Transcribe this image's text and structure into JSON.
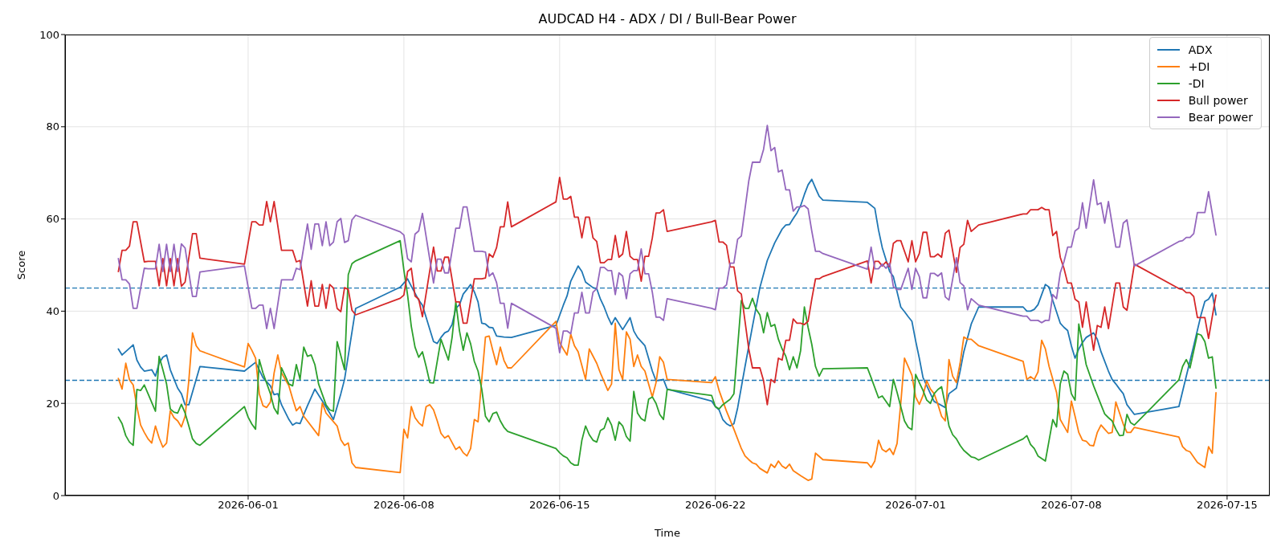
{
  "chart_data": {
    "type": "line",
    "title": "AUDCAD H4 - ADX / DI / Bull-Bear Power",
    "xlabel": "Time",
    "ylabel": "Score",
    "xlim": [
      "2026-05-23T18:30",
      "2026-07-16T22:00"
    ],
    "xticks": [
      "2026-06-01",
      "2026-06-08",
      "2026-06-15",
      "2026-06-22",
      "2026-07-01",
      "2026-07-08",
      "2026-07-15"
    ],
    "ylim": [
      0,
      100
    ],
    "yticks": [
      0,
      20,
      40,
      60,
      80,
      100
    ],
    "grid": true,
    "legend": "top right",
    "ref_lines": [
      {
        "axis": "y",
        "value": 45,
        "color": "#1f77b4",
        "line_style": "dashed"
      },
      {
        "axis": "y",
        "value": 25,
        "color": "#1f77b4",
        "line_style": "dashed"
      }
    ],
    "x": [
      "2026-05-26T04:00",
      "2026-05-26T08:00",
      "2026-05-26T12:00",
      "2026-05-26T16:00",
      "2026-05-26T20:00",
      "2026-05-27T00:00",
      "2026-05-27T08:00",
      "2026-05-27T12:00",
      "2026-05-27T20:00",
      "2026-05-28T00:00",
      "2026-05-28T04:00",
      "2026-05-28T08:00",
      "2026-05-28T12:00",
      "2026-05-28T16:00",
      "2026-05-28T20:00",
      "2026-05-29T00:00",
      "2026-05-29T04:00",
      "2026-05-29T12:00",
      "2026-05-29T16:00",
      "2026-05-29T20:00",
      "2026-05-31T20:00",
      "2026-06-01T04:00",
      "2026-06-01T08:00",
      "2026-06-01T12:00",
      "2026-06-01T16:00",
      "2026-06-01T20:00",
      "2026-06-02T00:00",
      "2026-06-02T04:00",
      "2026-06-02T12:00",
      "2026-06-03T00:00",
      "2026-06-03T04:00",
      "2026-06-03T08:00",
      "2026-06-03T16:00",
      "2026-06-03T20:00",
      "2026-06-04T00:00",
      "2026-06-04T04:00",
      "2026-06-04T08:00",
      "2026-06-04T12:00",
      "2026-06-04T16:00",
      "2026-06-04T20:00",
      "2026-06-05T00:00",
      "2026-06-05T04:00",
      "2026-06-05T08:00",
      "2026-06-05T12:00",
      "2026-06-05T16:00",
      "2026-06-05T20:00",
      "2026-06-07T20:00",
      "2026-06-08T00:00",
      "2026-06-08T04:00",
      "2026-06-08T08:00",
      "2026-06-08T12:00",
      "2026-06-08T16:00",
      "2026-06-08T20:00",
      "2026-06-09T08:00",
      "2026-06-09T12:00",
      "2026-06-09T16:00",
      "2026-06-09T20:00",
      "2026-06-10T00:00",
      "2026-06-10T08:00",
      "2026-06-10T12:00",
      "2026-06-10T16:00",
      "2026-06-10T20:00",
      "2026-06-11T04:00",
      "2026-06-11T12:00",
      "2026-06-11T16:00",
      "2026-06-11T20:00",
      "2026-06-12T00:00",
      "2026-06-12T04:00",
      "2026-06-12T08:00",
      "2026-06-12T12:00",
      "2026-06-12T16:00",
      "2026-06-12T20:00",
      "2026-06-14T20:00",
      "2026-06-15T00:00",
      "2026-06-15T04:00",
      "2026-06-15T08:00",
      "2026-06-15T12:00",
      "2026-06-15T16:00",
      "2026-06-15T20:00",
      "2026-06-16T00:00",
      "2026-06-16T04:00",
      "2026-06-16T08:00",
      "2026-06-16T12:00",
      "2026-06-16T16:00",
      "2026-06-16T20:00",
      "2026-06-17T00:00",
      "2026-06-17T04:00",
      "2026-06-17T08:00",
      "2026-06-17T12:00",
      "2026-06-17T16:00",
      "2026-06-17T20:00",
      "2026-06-18T00:00",
      "2026-06-18T04:00",
      "2026-06-18T08:00",
      "2026-06-18T12:00",
      "2026-06-18T16:00",
      "2026-06-18T20:00",
      "2026-06-19T00:00",
      "2026-06-19T04:00",
      "2026-06-19T08:00",
      "2026-06-19T12:00",
      "2026-06-19T16:00",
      "2026-06-19T20:00",
      "2026-06-21T20:00",
      "2026-06-22T00:00",
      "2026-06-22T04:00",
      "2026-06-22T08:00",
      "2026-06-22T12:00",
      "2026-06-22T16:00",
      "2026-06-22T20:00",
      "2026-06-23T00:00",
      "2026-06-23T04:00",
      "2026-06-23T08:00",
      "2026-06-23T12:00",
      "2026-06-23T16:00",
      "2026-06-23T20:00",
      "2026-06-24T00:00",
      "2026-06-24T04:00",
      "2026-06-24T08:00",
      "2026-06-24T12:00",
      "2026-06-24T16:00",
      "2026-06-24T20:00",
      "2026-06-25T00:00",
      "2026-06-25T04:00",
      "2026-06-25T08:00",
      "2026-06-25T12:00",
      "2026-06-25T16:00",
      "2026-06-25T20:00",
      "2026-06-26T00:00",
      "2026-06-26T04:00",
      "2026-06-26T08:00",
      "2026-06-26T12:00",
      "2026-06-26T16:00",
      "2026-06-26T20:00",
      "2026-06-28T20:00",
      "2026-06-29T00:00",
      "2026-06-29T04:00",
      "2026-06-29T08:00",
      "2026-06-29T12:00",
      "2026-06-29T16:00",
      "2026-06-29T20:00",
      "2026-06-30T00:00",
      "2026-06-30T04:00",
      "2026-06-30T08:00",
      "2026-06-30T16:00",
      "2026-06-30T20:00",
      "2026-07-01T00:00",
      "2026-07-01T04:00",
      "2026-07-01T08:00",
      "2026-07-01T12:00",
      "2026-07-01T16:00",
      "2026-07-01T20:00",
      "2026-07-02T00:00",
      "2026-07-02T04:00",
      "2026-07-02T08:00",
      "2026-07-02T12:00",
      "2026-07-02T20:00",
      "2026-07-03T00:00",
      "2026-07-03T04:00",
      "2026-07-03T08:00",
      "2026-07-03T12:00",
      "2026-07-03T20:00",
      "2026-07-05T20:00",
      "2026-07-06T00:00",
      "2026-07-06T04:00",
      "2026-07-06T12:00",
      "2026-07-06T16:00",
      "2026-07-06T20:00",
      "2026-07-07T00:00",
      "2026-07-07T04:00",
      "2026-07-07T08:00",
      "2026-07-07T12:00",
      "2026-07-07T16:00",
      "2026-07-07T20:00",
      "2026-07-08T00:00",
      "2026-07-08T04:00",
      "2026-07-08T08:00",
      "2026-07-08T12:00",
      "2026-07-08T16:00",
      "2026-07-09T00:00",
      "2026-07-09T04:00",
      "2026-07-09T08:00",
      "2026-07-09T12:00",
      "2026-07-09T16:00",
      "2026-07-10T00:00",
      "2026-07-10T04:00",
      "2026-07-10T08:00",
      "2026-07-10T12:00",
      "2026-07-10T20:00",
      "2026-07-12T20:00",
      "2026-07-13T00:00",
      "2026-07-13T04:00",
      "2026-07-13T08:00",
      "2026-07-13T12:00",
      "2026-07-13T16:00",
      "2026-07-14T00:00",
      "2026-07-14T04:00",
      "2026-07-14T12:00"
    ],
    "series": [
      {
        "name": "ADX",
        "color": "#1f77b4",
        "x": [
          "2026-05-26T04:00",
          "2026-05-26T08:00",
          "2026-05-26T20:00",
          "2026-05-27T00:00",
          "2026-05-27T04:00",
          "2026-05-27T08:00",
          "2026-05-27T16:00",
          "2026-05-27T20:00",
          "2026-05-28T00:00",
          "2026-05-28T04:00",
          "2026-05-28T08:00",
          "2026-05-28T12:00",
          "2026-05-28T20:00",
          "2026-05-29T00:00",
          "2026-05-29T04:00",
          "2026-05-29T08:00",
          "2026-05-29T20:00",
          "2026-05-31T20:00",
          "2026-06-01T08:00",
          "2026-06-01T16:00",
          "2026-06-02T00:00",
          "2026-06-02T04:00",
          "2026-06-02T08:00",
          "2026-06-02T12:00",
          "2026-06-02T20:00",
          "2026-06-03T00:00",
          "2026-06-03T04:00",
          "2026-06-03T08:00",
          "2026-06-03T16:00",
          "2026-06-04T00:00",
          "2026-06-04T08:00",
          "2026-06-04T16:00",
          "2026-06-04T20:00",
          "2026-06-05T04:00",
          "2026-06-05T08:00",
          "2026-06-05T20:00",
          "2026-06-07T20:00",
          "2026-06-08T04:00",
          "2026-06-08T08:00",
          "2026-06-08T16:00",
          "2026-06-08T20:00",
          "2026-06-09T04:00",
          "2026-06-09T08:00",
          "2026-06-09T12:00",
          "2026-06-09T16:00",
          "2026-06-09T20:00",
          "2026-06-10T00:00",
          "2026-06-10T04:00",
          "2026-06-10T08:00",
          "2026-06-10T12:00",
          "2026-06-10T16:00",
          "2026-06-10T20:00",
          "2026-06-11T00:00",
          "2026-06-11T04:00",
          "2026-06-11T08:00",
          "2026-06-11T12:00",
          "2026-06-11T16:00",
          "2026-06-11T20:00",
          "2026-06-12T00:00",
          "2026-06-12T04:00",
          "2026-06-12T12:00",
          "2026-06-12T20:00",
          "2026-06-14T20:00",
          "2026-06-15T04:00",
          "2026-06-15T08:00",
          "2026-06-15T12:00",
          "2026-06-15T20:00",
          "2026-06-16T00:00",
          "2026-06-16T04:00",
          "2026-06-16T12:00",
          "2026-06-16T16:00",
          "2026-06-16T20:00",
          "2026-06-17T00:00",
          "2026-06-17T04:00",
          "2026-06-17T08:00",
          "2026-06-17T12:00",
          "2026-06-17T20:00",
          "2026-06-18T04:00",
          "2026-06-18T08:00",
          "2026-06-18T12:00",
          "2026-06-18T20:00",
          "2026-06-19T04:00",
          "2026-06-19T08:00",
          "2026-06-19T16:00",
          "2026-06-19T20:00",
          "2026-06-21T20:00",
          "2026-06-22T00:00",
          "2026-06-22T04:00",
          "2026-06-22T08:00",
          "2026-06-22T12:00",
          "2026-06-22T16:00",
          "2026-06-22T20:00",
          "2026-06-23T00:00",
          "2026-06-23T08:00",
          "2026-06-23T16:00",
          "2026-06-24T00:00",
          "2026-06-24T08:00",
          "2026-06-24T16:00",
          "2026-06-25T00:00",
          "2026-06-25T04:00",
          "2026-06-25T08:00",
          "2026-06-25T12:00",
          "2026-06-25T16:00",
          "2026-06-25T20:00",
          "2026-06-26T00:00",
          "2026-06-26T04:00",
          "2026-06-26T08:00",
          "2026-06-26T12:00",
          "2026-06-26T16:00",
          "2026-06-26T20:00",
          "2026-06-28T20:00",
          "2026-06-29T04:00",
          "2026-06-29T08:00",
          "2026-06-29T12:00",
          "2026-06-29T20:00",
          "2026-06-30T00:00",
          "2026-06-30T08:00",
          "2026-06-30T12:00",
          "2026-06-30T16:00",
          "2026-06-30T20:00",
          "2026-07-01T00:00",
          "2026-07-01T04:00",
          "2026-07-01T08:00",
          "2026-07-01T16:00",
          "2026-07-01T20:00",
          "2026-07-02T00:00",
          "2026-07-02T08:00",
          "2026-07-02T12:00",
          "2026-07-02T20:00",
          "2026-07-03T00:00",
          "2026-07-03T04:00",
          "2026-07-03T12:00",
          "2026-07-03T20:00",
          "2026-07-05T20:00",
          "2026-07-06T00:00",
          "2026-07-06T04:00",
          "2026-07-06T08:00",
          "2026-07-06T12:00",
          "2026-07-06T20:00",
          "2026-07-07T00:00",
          "2026-07-07T04:00",
          "2026-07-07T12:00",
          "2026-07-07T16:00",
          "2026-07-07T20:00",
          "2026-07-08T00:00",
          "2026-07-08T04:00",
          "2026-07-08T08:00",
          "2026-07-08T12:00",
          "2026-07-08T16:00",
          "2026-07-09T00:00",
          "2026-07-09T04:00",
          "2026-07-09T08:00",
          "2026-07-09T16:00",
          "2026-07-09T20:00",
          "2026-07-10T00:00",
          "2026-07-10T04:00",
          "2026-07-10T08:00",
          "2026-07-10T12:00",
          "2026-07-10T20:00",
          "2026-07-12T20:00",
          "2026-07-13T04:00",
          "2026-07-13T12:00",
          "2026-07-13T20:00",
          "2026-07-14T00:00",
          "2026-07-14T04:00",
          "2026-07-14T08:00",
          "2026-07-14T12:00"
        ],
        "values": [
          31.8,
          30.5,
          32.7,
          29.4,
          27.9,
          27,
          27.3,
          25.9,
          28.7,
          30,
          30.5,
          27.3,
          23.3,
          22.1,
          19.7,
          19.7,
          28,
          27,
          28.9,
          25.6,
          23.8,
          21.9,
          22.1,
          19.7,
          16.5,
          15.3,
          15.8,
          15.6,
          19.5,
          23.1,
          20.5,
          17.9,
          16.5,
          22.1,
          25.2,
          40.6,
          45.2,
          47,
          45.4,
          42.4,
          41.3,
          36,
          33.4,
          33,
          34.3,
          35.3,
          35.7,
          37.1,
          40.6,
          41.4,
          43.7,
          44.7,
          45.8,
          44.2,
          42,
          37.4,
          37.2,
          36.5,
          36.4,
          34.6,
          34.4,
          34.3,
          36.9,
          41.3,
          43.3,
          46.5,
          49.8,
          48.6,
          46.3,
          45.1,
          44.9,
          42.6,
          40.9,
          38.8,
          37.1,
          38.6,
          36,
          38.6,
          35.7,
          34.3,
          32.5,
          27,
          24.9,
          25.2,
          23.1,
          20.5,
          19.3,
          18.6,
          16.5,
          15.6,
          15.1,
          15.6,
          19,
          28,
          36.7,
          45.1,
          51,
          54.8,
          57.8,
          58.7,
          58.8,
          60.1,
          61.3,
          62.9,
          65.3,
          67.4,
          68.6,
          66.7,
          64.9,
          64.1,
          63.6,
          62.3,
          57.6,
          53.8,
          48.6,
          47.5,
          40.9,
          39.9,
          38.8,
          37.8,
          33.6,
          29.8,
          25.6,
          22.1,
          20.4,
          20,
          19.1,
          22.1,
          23.3,
          27,
          31.2,
          37.2,
          40.9,
          40.9,
          40,
          40,
          40.4,
          41.4,
          45.8,
          45.2,
          42.3,
          37.4,
          36.5,
          35.8,
          32.5,
          29.8,
          31.8,
          33.2,
          34.3,
          35.3,
          33.9,
          31.2,
          27,
          25.2,
          24.2,
          23.1,
          22.1,
          19.7,
          17.6,
          19.3,
          25.9,
          32.5,
          39.3,
          42.1,
          42.6,
          43.9,
          39.2
        ]
      },
      {
        "name": "+DI",
        "color": "#ff7f0e",
        "x": [
          "2026-05-26T04:00",
          "2026-05-26T08:00",
          "2026-05-26T12:00",
          "2026-05-26T16:00",
          "2026-05-26T20:00",
          "2026-05-27T00:00",
          "2026-05-27T04:00",
          "2026-05-27T08:00",
          "2026-05-27T12:00",
          "2026-05-27T16:00",
          "2026-05-27T20:00",
          "2026-05-28T00:00",
          "2026-05-28T04:00",
          "2026-05-28T08:00",
          "2026-05-28T12:00",
          "2026-05-28T16:00",
          "2026-05-28T20:00",
          "2026-05-29T00:00",
          "2026-05-29T04:00",
          "2026-05-29T08:00",
          "2026-05-29T12:00",
          "2026-05-29T16:00",
          "2026-05-29T20:00",
          "2026-05-31T20:00",
          "2026-06-01T00:00",
          "2026-06-01T04:00",
          "2026-06-01T08:00",
          "2026-06-01T12:00",
          "2026-06-01T16:00",
          "2026-06-01T20:00",
          "2026-06-02T00:00",
          "2026-06-02T04:00",
          "2026-06-02T08:00",
          "2026-06-02T12:00",
          "2026-06-02T16:00",
          "2026-06-02T20:00",
          "2026-06-03T00:00",
          "2026-06-03T04:00",
          "2026-06-03T08:00",
          "2026-06-03T12:00",
          "2026-06-04T04:00",
          "2026-06-04T08:00",
          "2026-06-04T12:00",
          "2026-06-05T00:00",
          "2026-06-05T04:00",
          "2026-06-05T08:00",
          "2026-06-05T12:00",
          "2026-06-05T16:00",
          "2026-06-05T20:00",
          "2026-06-07T20:00",
          "2026-06-08T00:00",
          "2026-06-08T04:00",
          "2026-06-08T08:00",
          "2026-06-08T12:00",
          "2026-06-08T16:00",
          "2026-06-08T20:00",
          "2026-06-09T00:00",
          "2026-06-09T04:00",
          "2026-06-09T08:00",
          "2026-06-09T12:00",
          "2026-06-09T16:00",
          "2026-06-09T20:00",
          "2026-06-10T00:00",
          "2026-06-10T08:00",
          "2026-06-10T12:00",
          "2026-06-10T16:00",
          "2026-06-10T20:00",
          "2026-06-11T00:00",
          "2026-06-11T04:00",
          "2026-06-11T08:00",
          "2026-06-11T16:00",
          "2026-06-11T20:00",
          "2026-06-12T00:00",
          "2026-06-12T04:00",
          "2026-06-12T08:00",
          "2026-06-12T12:00",
          "2026-06-12T16:00",
          "2026-06-12T20:00",
          "2026-06-14T20:00",
          "2026-06-15T00:00",
          "2026-06-15T04:00",
          "2026-06-15T08:00",
          "2026-06-15T12:00",
          "2026-06-15T16:00",
          "2026-06-15T20:00",
          "2026-06-16T04:00",
          "2026-06-16T08:00",
          "2026-06-16T16:00",
          "2026-06-16T20:00",
          "2026-06-17T04:00",
          "2026-06-17T08:00",
          "2026-06-17T12:00",
          "2026-06-17T16:00",
          "2026-06-17T20:00",
          "2026-06-18T00:00",
          "2026-06-18T04:00",
          "2026-06-18T08:00",
          "2026-06-18T12:00",
          "2026-06-18T16:00",
          "2026-06-18T20:00",
          "2026-06-19T04:00",
          "2026-06-19T08:00",
          "2026-06-19T12:00",
          "2026-06-19T16:00",
          "2026-06-19T20:00",
          "2026-06-21T20:00",
          "2026-06-22T00:00",
          "2026-06-22T04:00",
          "2026-06-22T12:00",
          "2026-06-22T20:00",
          "2026-06-23T04:00",
          "2026-06-23T08:00",
          "2026-06-23T12:00",
          "2026-06-23T16:00",
          "2026-06-23T20:00",
          "2026-06-24T00:00",
          "2026-06-24T08:00",
          "2026-06-24T12:00",
          "2026-06-24T16:00",
          "2026-06-24T20:00",
          "2026-06-25T00:00",
          "2026-06-25T04:00",
          "2026-06-25T08:00",
          "2026-06-25T12:00",
          "2026-06-25T20:00",
          "2026-06-26T04:00",
          "2026-06-26T08:00",
          "2026-06-26T12:00",
          "2026-06-26T20:00",
          "2026-06-28T20:00",
          "2026-06-29T00:00",
          "2026-06-29T04:00",
          "2026-06-29T08:00",
          "2026-06-29T12:00",
          "2026-06-29T16:00",
          "2026-06-29T20:00",
          "2026-06-30T00:00",
          "2026-06-30T04:00",
          "2026-06-30T08:00",
          "2026-06-30T12:00",
          "2026-06-30T16:00",
          "2026-06-30T20:00",
          "2026-07-01T00:00",
          "2026-07-01T04:00",
          "2026-07-01T08:00",
          "2026-07-01T12:00",
          "2026-07-01T16:00",
          "2026-07-01T20:00",
          "2026-07-02T00:00",
          "2026-07-02T04:00",
          "2026-07-02T08:00",
          "2026-07-02T12:00",
          "2026-07-02T16:00",
          "2026-07-02T20:00",
          "2026-07-03T00:00",
          "2026-07-03T04:00",
          "2026-07-03T08:00",
          "2026-07-03T12:00",
          "2026-07-03T20:00",
          "2026-07-05T20:00",
          "2026-07-06T00:00",
          "2026-07-06T04:00",
          "2026-07-06T08:00",
          "2026-07-06T12:00",
          "2026-07-06T16:00",
          "2026-07-06T20:00",
          "2026-07-07T00:00",
          "2026-07-07T04:00",
          "2026-07-07T08:00",
          "2026-07-07T12:00",
          "2026-07-07T16:00",
          "2026-07-07T20:00",
          "2026-07-08T00:00",
          "2026-07-08T04:00",
          "2026-07-08T08:00",
          "2026-07-08T12:00",
          "2026-07-08T16:00",
          "2026-07-08T20:00",
          "2026-07-09T00:00",
          "2026-07-09T04:00",
          "2026-07-09T08:00",
          "2026-07-09T12:00",
          "2026-07-09T16:00",
          "2026-07-09T20:00",
          "2026-07-10T00:00",
          "2026-07-10T04:00",
          "2026-07-10T08:00",
          "2026-07-10T12:00",
          "2026-07-10T16:00",
          "2026-07-10T20:00",
          "2026-07-12T20:00",
          "2026-07-13T00:00",
          "2026-07-13T04:00",
          "2026-07-13T08:00",
          "2026-07-13T16:00",
          "2026-07-14T00:00",
          "2026-07-14T04:00",
          "2026-07-14T08:00",
          "2026-07-14T12:00"
        ],
        "values": [
          25.4,
          23.1,
          28.7,
          25.1,
          24,
          19.3,
          15.3,
          13.7,
          12.3,
          11.4,
          15.1,
          12.5,
          10.5,
          11.4,
          18.4,
          16.9,
          16.2,
          14.9,
          17.2,
          24.9,
          35.3,
          32.5,
          31.4,
          27.9,
          33,
          31.5,
          29.8,
          22.1,
          19.5,
          19.1,
          20.3,
          26.6,
          30.5,
          26.6,
          25.2,
          23.8,
          21,
          18.4,
          19.3,
          17.2,
          13,
          20.1,
          17.9,
          15.1,
          12.1,
          10.9,
          11.4,
          7.1,
          6.1,
          5,
          14.4,
          12.5,
          19.3,
          16.9,
          15.8,
          15.1,
          19.3,
          19.7,
          18.6,
          16.2,
          13.5,
          12.5,
          13,
          10,
          10.6,
          9.3,
          8.6,
          10.2,
          16.5,
          16,
          34.4,
          34.6,
          31.4,
          28.4,
          32.2,
          29.3,
          27.7,
          27.7,
          37.8,
          33.2,
          31.8,
          30.5,
          35,
          32.5,
          31.2,
          25.2,
          31.8,
          28.7,
          26.6,
          22.8,
          24.2,
          37.4,
          27.3,
          25.2,
          35.5,
          33.9,
          28,
          30.5,
          28,
          27,
          21.4,
          24.5,
          30.1,
          28.9,
          25.2,
          24.5,
          25.8,
          22.8,
          18.3,
          14.4,
          10.2,
          8.6,
          7.8,
          7.1,
          6.8,
          5.9,
          4.9,
          6.8,
          6.1,
          7.5,
          6.4,
          5.9,
          6.8,
          5.4,
          4.3,
          3.3,
          3.6,
          9.2,
          7.8,
          7.1,
          6.1,
          7.5,
          12,
          10,
          9.5,
          10.2,
          8.9,
          11.3,
          20,
          29.8,
          28,
          26.1,
          21.4,
          19.8,
          21.7,
          24.9,
          23.1,
          22.1,
          19.8,
          17.2,
          16.2,
          29.5,
          25.9,
          24.5,
          28.7,
          34.4,
          33.9,
          33.9,
          32.5,
          29.1,
          25.2,
          25.8,
          25.2,
          26.8,
          33.7,
          31.8,
          28,
          25.2,
          22.4,
          16.5,
          15.1,
          13.7,
          20.5,
          17.2,
          13.7,
          12,
          11.8,
          10.9,
          10.8,
          13.7,
          15.3,
          14.4,
          13.5,
          13.7,
          20.3,
          17.9,
          15.5,
          13.7,
          13.7,
          14.8,
          12.7,
          10.6,
          9.8,
          9.5,
          7.2,
          6.1,
          10.6,
          9.2,
          22.3
        ]
      },
      {
        "name": "-DI",
        "color": "#2ca02c",
        "x": [
          "2026-05-26T04:00",
          "2026-05-26T08:00",
          "2026-05-26T12:00",
          "2026-05-26T16:00",
          "2026-05-26T20:00",
          "2026-05-27T00:00",
          "2026-05-27T04:00",
          "2026-05-27T08:00",
          "2026-05-27T12:00",
          "2026-05-27T20:00",
          "2026-05-28T00:00",
          "2026-05-28T04:00",
          "2026-05-28T08:00",
          "2026-05-28T12:00",
          "2026-05-28T16:00",
          "2026-05-28T20:00",
          "2026-05-29T00:00",
          "2026-05-29T04:00",
          "2026-05-29T08:00",
          "2026-05-29T12:00",
          "2026-05-29T16:00",
          "2026-05-29T20:00",
          "2026-05-31T20:00",
          "2026-06-01T00:00",
          "2026-06-01T04:00",
          "2026-06-01T08:00",
          "2026-06-01T12:00",
          "2026-06-01T16:00",
          "2026-06-02T00:00",
          "2026-06-02T04:00",
          "2026-06-02T08:00",
          "2026-06-02T12:00",
          "2026-06-02T20:00",
          "2026-06-03T00:00",
          "2026-06-03T04:00",
          "2026-06-03T08:00",
          "2026-06-03T12:00",
          "2026-06-03T16:00",
          "2026-06-03T20:00",
          "2026-06-04T00:00",
          "2026-06-04T04:00",
          "2026-06-04T12:00",
          "2026-06-04T16:00",
          "2026-06-04T20:00",
          "2026-06-05T00:00",
          "2026-06-05T08:00",
          "2026-06-05T12:00",
          "2026-06-05T16:00",
          "2026-06-05T20:00",
          "2026-06-07T20:00",
          "2026-06-08T00:00",
          "2026-06-08T04:00",
          "2026-06-08T08:00",
          "2026-06-08T12:00",
          "2026-06-08T16:00",
          "2026-06-08T20:00",
          "2026-06-09T00:00",
          "2026-06-09T04:00",
          "2026-06-09T08:00",
          "2026-06-09T16:00",
          "2026-06-10T00:00",
          "2026-06-10T04:00",
          "2026-06-10T08:00",
          "2026-06-10T12:00",
          "2026-06-10T16:00",
          "2026-06-10T20:00",
          "2026-06-11T00:00",
          "2026-06-11T04:00",
          "2026-06-11T08:00",
          "2026-06-11T12:00",
          "2026-06-11T16:00",
          "2026-06-11T20:00",
          "2026-06-12T00:00",
          "2026-06-12T04:00",
          "2026-06-12T08:00",
          "2026-06-12T12:00",
          "2026-06-12T16:00",
          "2026-06-14T20:00",
          "2026-06-15T00:00",
          "2026-06-15T04:00",
          "2026-06-15T08:00",
          "2026-06-15T12:00",
          "2026-06-15T16:00",
          "2026-06-15T20:00",
          "2026-06-16T00:00",
          "2026-06-16T04:00",
          "2026-06-16T08:00",
          "2026-06-16T12:00",
          "2026-06-16T16:00",
          "2026-06-16T20:00",
          "2026-06-17T00:00",
          "2026-06-17T04:00",
          "2026-06-17T08:00",
          "2026-06-17T12:00",
          "2026-06-17T16:00",
          "2026-06-17T20:00",
          "2026-06-18T00:00",
          "2026-06-18T04:00",
          "2026-06-18T08:00",
          "2026-06-18T12:00",
          "2026-06-18T16:00",
          "2026-06-18T20:00",
          "2026-06-19T00:00",
          "2026-06-19T04:00",
          "2026-06-19T08:00",
          "2026-06-19T12:00",
          "2026-06-19T16:00",
          "2026-06-19T20:00",
          "2026-06-21T20:00",
          "2026-06-22T00:00",
          "2026-06-22T04:00",
          "2026-06-22T08:00",
          "2026-06-22T12:00",
          "2026-06-22T16:00",
          "2026-06-22T20:00",
          "2026-06-23T04:00",
          "2026-06-23T08:00",
          "2026-06-23T12:00",
          "2026-06-23T16:00",
          "2026-06-23T20:00",
          "2026-06-24T00:00",
          "2026-06-24T04:00",
          "2026-06-24T08:00",
          "2026-06-24T12:00",
          "2026-06-24T16:00",
          "2026-06-24T20:00",
          "2026-06-25T00:00",
          "2026-06-25T04:00",
          "2026-06-25T08:00",
          "2026-06-25T12:00",
          "2026-06-25T16:00",
          "2026-06-25T20:00",
          "2026-06-26T00:00",
          "2026-06-26T04:00",
          "2026-06-26T08:00",
          "2026-06-26T12:00",
          "2026-06-26T16:00",
          "2026-06-26T20:00",
          "2026-06-28T20:00",
          "2026-06-29T00:00",
          "2026-06-29T08:00",
          "2026-06-29T12:00",
          "2026-06-29T20:00",
          "2026-06-30T00:00",
          "2026-06-30T04:00",
          "2026-06-30T08:00",
          "2026-06-30T12:00",
          "2026-06-30T16:00",
          "2026-06-30T20:00",
          "2026-07-01T00:00",
          "2026-07-01T04:00",
          "2026-07-01T08:00",
          "2026-07-01T12:00",
          "2026-07-01T16:00",
          "2026-07-01T20:00",
          "2026-07-02T00:00",
          "2026-07-02T04:00",
          "2026-07-02T08:00",
          "2026-07-02T12:00",
          "2026-07-02T16:00",
          "2026-07-02T20:00",
          "2026-07-03T00:00",
          "2026-07-03T04:00",
          "2026-07-03T08:00",
          "2026-07-03T12:00",
          "2026-07-03T16:00",
          "2026-07-03T20:00",
          "2026-07-05T20:00",
          "2026-07-06T00:00",
          "2026-07-06T04:00",
          "2026-07-06T08:00",
          "2026-07-06T12:00",
          "2026-07-06T20:00",
          "2026-07-07T04:00",
          "2026-07-07T08:00",
          "2026-07-07T12:00",
          "2026-07-07T16:00",
          "2026-07-07T20:00",
          "2026-07-08T00:00",
          "2026-07-08T04:00",
          "2026-07-08T08:00",
          "2026-07-08T12:00",
          "2026-07-08T16:00",
          "2026-07-09T00:00",
          "2026-07-09T08:00",
          "2026-07-09T12:00",
          "2026-07-09T16:00",
          "2026-07-09T20:00",
          "2026-07-10T00:00",
          "2026-07-10T04:00",
          "2026-07-10T08:00",
          "2026-07-10T12:00",
          "2026-07-10T16:00",
          "2026-07-10T20:00",
          "2026-07-12T20:00",
          "2026-07-13T00:00",
          "2026-07-13T04:00",
          "2026-07-13T08:00",
          "2026-07-13T16:00",
          "2026-07-13T20:00",
          "2026-07-14T00:00",
          "2026-07-14T04:00",
          "2026-07-14T08:00",
          "2026-07-14T12:00"
        ],
        "values": [
          17,
          15.6,
          13,
          11.6,
          10.9,
          23,
          22.8,
          24,
          22.1,
          18.3,
          30.2,
          27.3,
          24.2,
          18.8,
          18.1,
          17.9,
          19.8,
          17.9,
          15.1,
          12.3,
          11.3,
          10.9,
          19.3,
          17,
          15.5,
          14.4,
          29.5,
          26.6,
          22.1,
          19,
          17.7,
          27.7,
          24.2,
          23.8,
          28.4,
          25.2,
          32.2,
          30.2,
          30.5,
          28.4,
          24.2,
          19.7,
          18.6,
          18.3,
          33.4,
          27.3,
          47.9,
          50.3,
          50.9,
          55.3,
          48.9,
          43.5,
          36.7,
          32.2,
          30,
          31.2,
          28,
          24.5,
          24.4,
          33.9,
          29.4,
          34.3,
          42,
          35.7,
          31.5,
          35.3,
          32.9,
          29.1,
          27,
          23.1,
          17.2,
          16,
          17.8,
          18.1,
          16.2,
          14.8,
          13.9,
          10.2,
          9.3,
          8.6,
          8.2,
          7.1,
          6.6,
          6.6,
          12,
          15.1,
          13.2,
          12,
          11.6,
          14.1,
          14.6,
          16.9,
          15.3,
          12,
          16,
          15.1,
          12.8,
          11.8,
          22.6,
          17.9,
          16.7,
          16.2,
          20.9,
          21.4,
          20,
          17.6,
          16.5,
          23,
          21.7,
          19.3,
          18.8,
          19.7,
          20.3,
          20.9,
          22.1,
          42.3,
          40.6,
          40.6,
          42.8,
          40.4,
          39.2,
          35.3,
          39.7,
          36.7,
          37.1,
          33.9,
          31.8,
          30.2,
          27.3,
          30.1,
          27.7,
          31.5,
          40.9,
          36.5,
          32.8,
          28,
          25.9,
          27.5,
          27.7,
          25.6,
          21.2,
          21.6,
          19.3,
          25.2,
          22.4,
          19.3,
          16.2,
          14.8,
          14.3,
          26.3,
          24.5,
          22.8,
          20.7,
          20,
          22.1,
          23,
          23.6,
          19.7,
          15.1,
          13.2,
          12.3,
          10.9,
          9.8,
          9.1,
          8.4,
          8.2,
          7.7,
          12.3,
          13,
          11.1,
          10.2,
          8.6,
          7.5,
          16.5,
          14.9,
          24.2,
          27,
          26.3,
          22.1,
          20.7,
          37.2,
          32.9,
          28.4,
          23.8,
          19.7,
          17.7,
          16.9,
          16.2,
          14.4,
          13,
          13.1,
          17.6,
          15.8,
          15.3,
          25.1,
          28,
          29.5,
          27.7,
          35.1,
          34.8,
          33.4,
          29.8,
          30.1,
          23.3
        ]
      },
      {
        "name": "Bull power",
        "color": "#d62728",
        "values": [
          48.6,
          53.2,
          53.2,
          54.1,
          59.4,
          59.4,
          50.7,
          50.8,
          50.8,
          45.5,
          51.4,
          45.5,
          51.4,
          45.5,
          51.4,
          45.4,
          46.3,
          56.8,
          56.8,
          51.5,
          50.2,
          59.4,
          59.4,
          58.7,
          58.7,
          63.8,
          59.4,
          63.8,
          53.2,
          53.2,
          50.7,
          51,
          41.1,
          46.6,
          41.1,
          41.1,
          45.8,
          40.6,
          45.8,
          45,
          40.6,
          39.9,
          45.1,
          44.7,
          40.2,
          39.2,
          42.8,
          43.5,
          48.6,
          49.3,
          43.3,
          42.6,
          38.8,
          53.9,
          48.7,
          48.7,
          51.7,
          51.7,
          42,
          42,
          37.4,
          37.4,
          47,
          47,
          47.2,
          52.4,
          51.7,
          53.8,
          58.3,
          58.3,
          63.7,
          58.3,
          63.7,
          69,
          64.3,
          64.3,
          64.9,
          60.4,
          60.4,
          55.9,
          60.4,
          60.4,
          55.9,
          55.1,
          50.5,
          50.5,
          51.2,
          51.2,
          56.4,
          51.7,
          52.4,
          57.3,
          51.9,
          51.2,
          51.2,
          46.5,
          51.9,
          51.9,
          55.9,
          61.3,
          61.3,
          62,
          57.3,
          59.4,
          59.7,
          55,
          55,
          54.3,
          49.6,
          49.6,
          44.4,
          43.7,
          37.8,
          31.8,
          27.7,
          27.7,
          27.7,
          24.9,
          19.7,
          25.2,
          24.5,
          29.8,
          29.4,
          33.7,
          33.7,
          38.3,
          37.4,
          37.4,
          37.1,
          37.8,
          42.6,
          47,
          47,
          47.5,
          50.9,
          46.1,
          50.8,
          50.8,
          49.8,
          50.7,
          49.6,
          54.7,
          55.3,
          55.3,
          50.7,
          55.3,
          50.7,
          52.5,
          57.1,
          57.1,
          51.8,
          51.8,
          52.4,
          51.7,
          56.9,
          57.6,
          48.4,
          53.8,
          54.5,
          59.7,
          57.3,
          58.7,
          61.1,
          61.1,
          62,
          62,
          62.5,
          62,
          62,
          56.4,
          57.3,
          51.7,
          49.3,
          46.1,
          46.1,
          42.6,
          42,
          36.5,
          42,
          31.5,
          36.9,
          36.5,
          40.9,
          36.2,
          46.1,
          46.1,
          40.9,
          40.2,
          50.2,
          44.9,
          44.7,
          44,
          44,
          43.2,
          38.6,
          38.6,
          34.1,
          43.5
        ]
      },
      {
        "name": "Bear power",
        "color": "#9467bd",
        "values": [
          51.4,
          46.8,
          46.8,
          45.9,
          40.6,
          40.6,
          49.3,
          49.2,
          49.2,
          54.5,
          48.6,
          54.5,
          48.6,
          54.5,
          48.6,
          54.6,
          53.7,
          43.2,
          43.2,
          48.5,
          49.8,
          40.6,
          40.6,
          41.3,
          41.3,
          36.2,
          40.6,
          36.2,
          46.8,
          46.8,
          49.3,
          49,
          58.9,
          53.4,
          58.9,
          58.9,
          54.2,
          59.4,
          54.2,
          55,
          59.4,
          60.1,
          54.9,
          55.3,
          59.8,
          60.8,
          57.2,
          56.5,
          51.4,
          50.7,
          56.7,
          57.4,
          61.2,
          46.1,
          51.3,
          51.3,
          48.3,
          48.3,
          58,
          58,
          62.6,
          62.6,
          53,
          53,
          52.8,
          47.6,
          48.3,
          46.2,
          41.7,
          41.7,
          36.3,
          41.7,
          36.3,
          31,
          35.7,
          35.7,
          35.1,
          39.6,
          39.6,
          44.1,
          39.6,
          39.6,
          44.1,
          44.9,
          49.5,
          49.5,
          48.8,
          48.8,
          43.6,
          48.3,
          47.6,
          42.7,
          48.1,
          48.8,
          48.8,
          53.5,
          48.1,
          48.1,
          44.1,
          38.7,
          38.7,
          38,
          42.7,
          40.6,
          40.3,
          45,
          45,
          45.7,
          50.4,
          50.4,
          55.6,
          56.3,
          62.2,
          68.2,
          72.3,
          72.3,
          72.3,
          75.1,
          80.3,
          74.8,
          75.5,
          70.2,
          70.6,
          66.3,
          66.3,
          61.7,
          62.6,
          62.6,
          62.9,
          62.2,
          57.4,
          53,
          53,
          52.5,
          49.1,
          53.9,
          49.2,
          49.2,
          50.2,
          49.3,
          50.4,
          45.3,
          44.7,
          44.7,
          49.3,
          44.7,
          49.3,
          47.5,
          42.9,
          42.9,
          48.2,
          48.2,
          47.6,
          48.3,
          43.1,
          42.4,
          51.6,
          46.2,
          45.5,
          40.3,
          42.7,
          41.3,
          38.9,
          38.9,
          38,
          38,
          37.5,
          38,
          38,
          43.6,
          42.7,
          48.3,
          50.7,
          53.9,
          53.9,
          57.4,
          58,
          63.5,
          58,
          68.5,
          63.1,
          63.5,
          59.1,
          63.8,
          53.9,
          53.9,
          59.1,
          59.8,
          49.8,
          55.1,
          55.3,
          56,
          56,
          56.8,
          61.4,
          61.4,
          65.9,
          56.5
        ]
      }
    ]
  }
}
